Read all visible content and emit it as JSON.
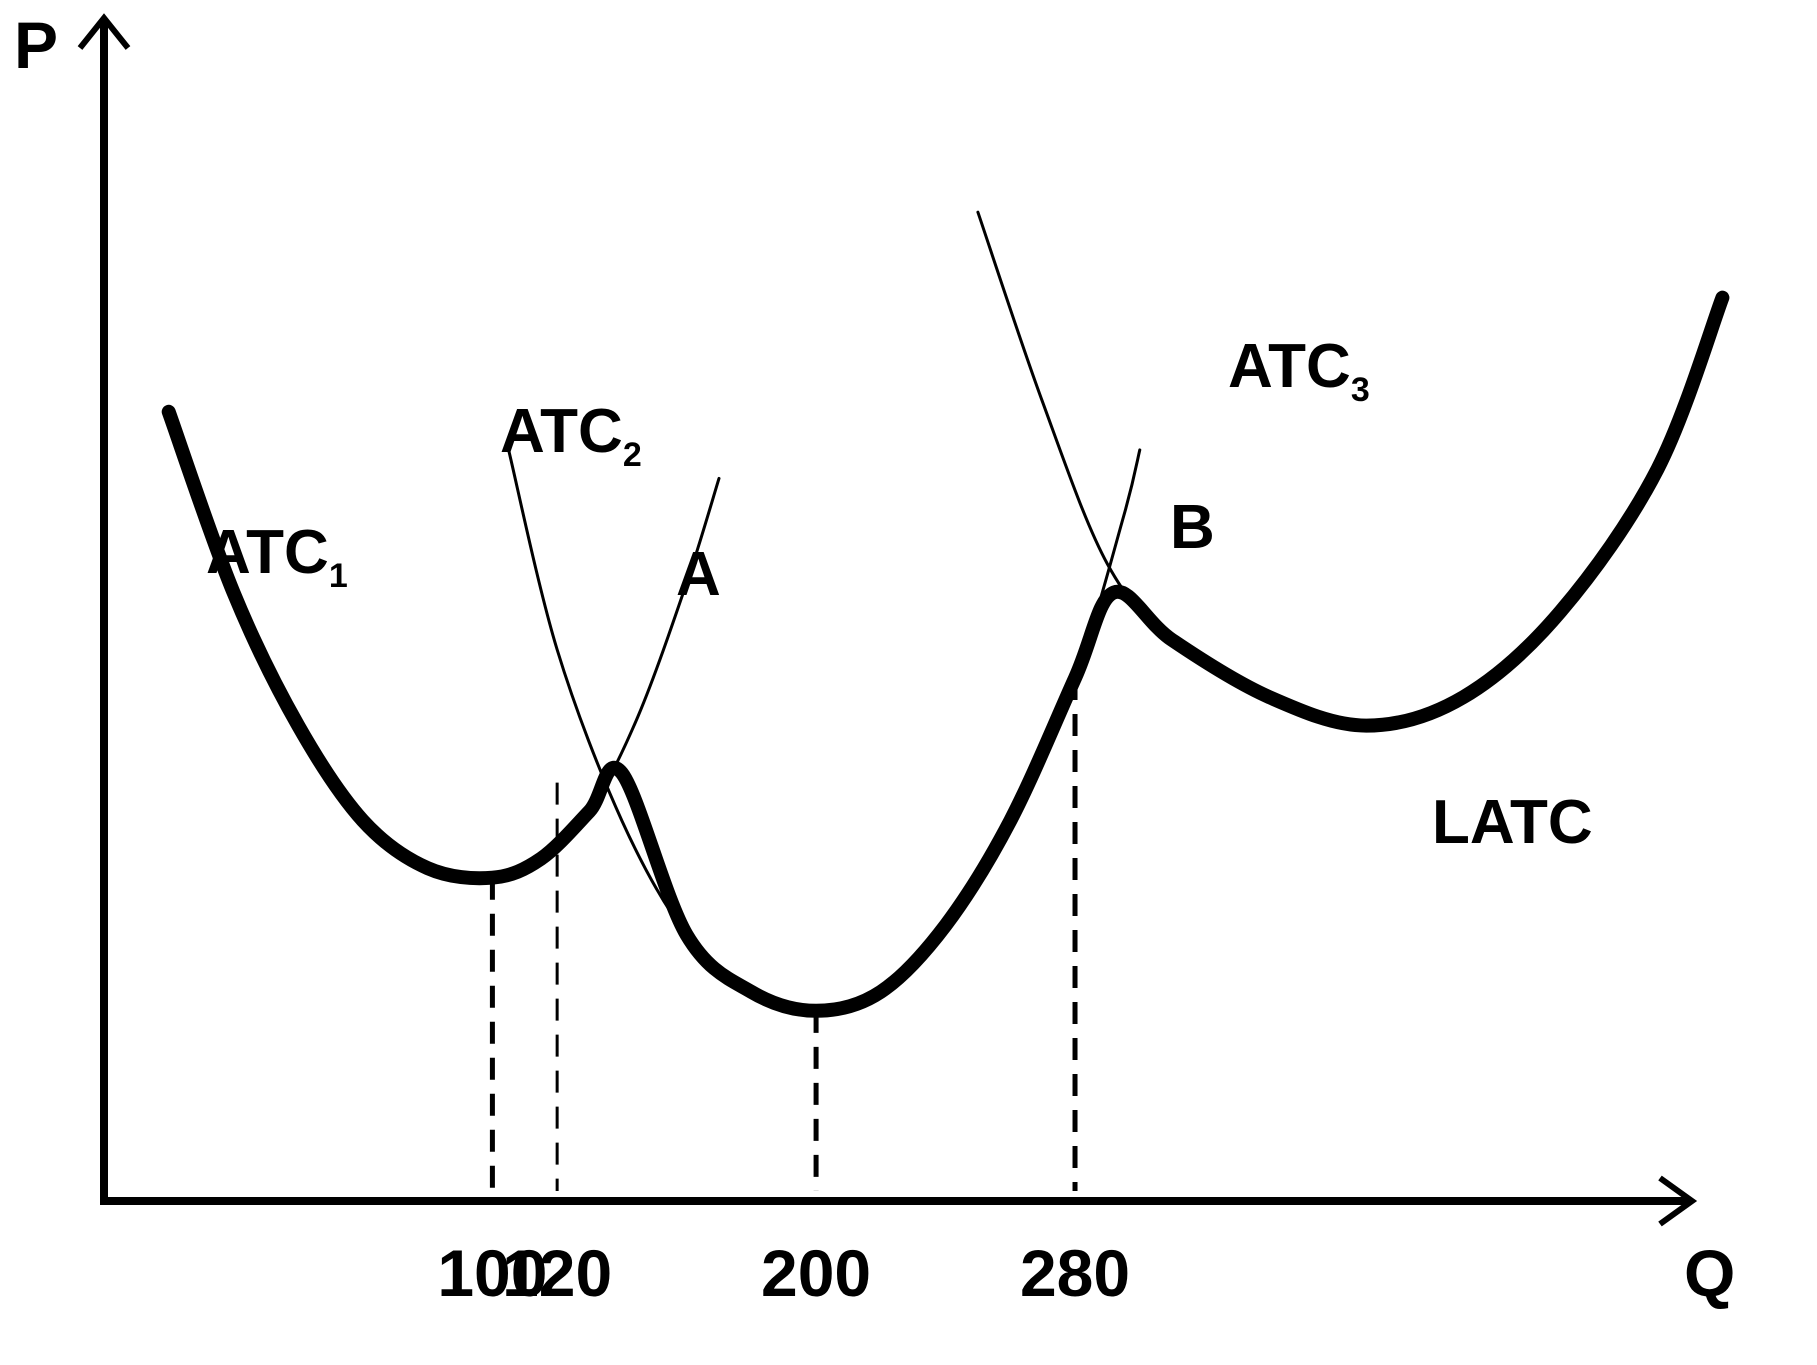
{
  "chart_data": {
    "type": "line",
    "xlabel": "Q",
    "ylabel": "P",
    "x_ticks": [
      100,
      120,
      200,
      280
    ],
    "y_ticks": [],
    "series": [
      {
        "name": "ATC₁",
        "label_main": "ATC",
        "label_sub": "1",
        "points": [
          [
            0,
            0.69
          ],
          [
            20,
            0.5
          ],
          [
            40,
            0.36
          ],
          [
            60,
            0.26
          ],
          [
            80,
            0.21
          ],
          [
            100,
            0.2
          ],
          [
            115,
            0.22
          ],
          [
            130,
            0.27
          ],
          [
            145,
            0.37
          ],
          [
            160,
            0.51
          ],
          [
            170,
            0.62
          ]
        ]
      },
      {
        "name": "ATC₂",
        "label_main": "ATC",
        "label_sub": "2",
        "points": [
          [
            105,
            0.65
          ],
          [
            120,
            0.44
          ],
          [
            140,
            0.26
          ],
          [
            160,
            0.14
          ],
          [
            180,
            0.08
          ],
          [
            200,
            0.06
          ],
          [
            220,
            0.08
          ],
          [
            240,
            0.15
          ],
          [
            260,
            0.26
          ],
          [
            280,
            0.41
          ],
          [
            295,
            0.58
          ],
          [
            300,
            0.65
          ]
        ]
      },
      {
        "name": "ATC₃",
        "label_main": "ATC",
        "label_sub": "3",
        "points": [
          [
            250,
            0.9
          ],
          [
            270,
            0.7
          ],
          [
            290,
            0.53
          ],
          [
            310,
            0.45
          ],
          [
            340,
            0.39
          ],
          [
            370,
            0.36
          ],
          [
            400,
            0.39
          ],
          [
            430,
            0.48
          ],
          [
            460,
            0.63
          ],
          [
            480,
            0.81
          ]
        ]
      },
      {
        "name": "LATC",
        "label_main": "LATC",
        "label_sub": "",
        "points": [
          [
            0,
            0.69
          ],
          [
            20,
            0.5
          ],
          [
            40,
            0.36
          ],
          [
            60,
            0.26
          ],
          [
            80,
            0.21
          ],
          [
            100,
            0.2
          ],
          [
            115,
            0.22
          ],
          [
            130,
            0.27
          ],
          [
            140,
            0.31
          ],
          [
            160,
            0.14
          ],
          [
            180,
            0.08
          ],
          [
            200,
            0.06
          ],
          [
            220,
            0.08
          ],
          [
            240,
            0.15
          ],
          [
            260,
            0.26
          ],
          [
            280,
            0.41
          ],
          [
            292,
            0.5
          ],
          [
            310,
            0.45
          ],
          [
            340,
            0.39
          ],
          [
            370,
            0.36
          ],
          [
            400,
            0.39
          ],
          [
            430,
            0.48
          ],
          [
            460,
            0.63
          ],
          [
            480,
            0.81
          ]
        ]
      }
    ],
    "points": [
      {
        "label": "A",
        "x": 120,
        "y": 0.3
      },
      {
        "label": "B",
        "x": 280,
        "y": 0.41
      }
    ],
    "vertical_guides": [
      {
        "x": 100,
        "y": 0.2
      },
      {
        "x": 120,
        "y": 0.3
      },
      {
        "x": 200,
        "y": 0.06
      },
      {
        "x": 280,
        "y": 0.41
      }
    ],
    "xlim": [
      -20,
      470
    ],
    "ylim": [
      -0.14,
      1.1
    ],
    "grid": false,
    "legend": "none"
  }
}
